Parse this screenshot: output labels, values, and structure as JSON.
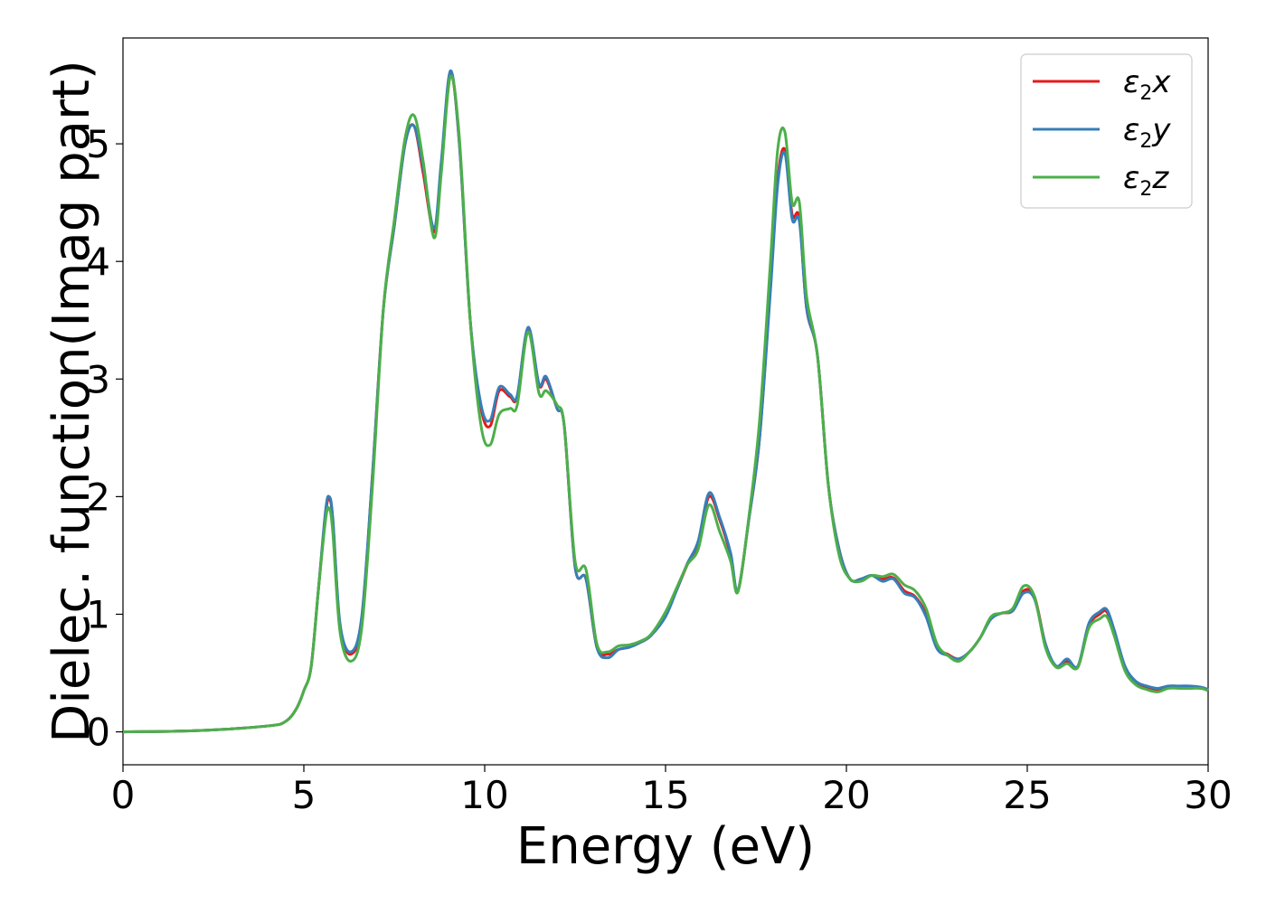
{
  "chart_data": {
    "type": "line",
    "xlabel": "Energy (eV)",
    "ylabel": "Dielec. function(Imag part)",
    "xlim": [
      0,
      30
    ],
    "ylim": [
      -0.28,
      5.9
    ],
    "xticks": [
      0,
      5,
      10,
      15,
      20,
      25,
      30
    ],
    "yticks": [
      0,
      1,
      2,
      3,
      4,
      5
    ],
    "grid": false,
    "legend_position": "top-right",
    "series": [
      {
        "name": "ε2x",
        "legend": {
          "base": "ε",
          "sub": "2",
          "var": "x"
        },
        "color": "#e41a1c",
        "x": [
          0,
          2,
          4,
          4.5,
          4.8,
          5.0,
          5.2,
          5.4,
          5.6,
          5.7,
          5.8,
          6.0,
          6.3,
          6.6,
          6.9,
          7.2,
          7.5,
          7.8,
          8.05,
          8.3,
          8.6,
          8.8,
          9.05,
          9.3,
          9.6,
          9.9,
          10.15,
          10.4,
          10.7,
          10.9,
          11.2,
          11.5,
          11.7,
          12.0,
          12.2,
          12.5,
          12.8,
          13.1,
          13.4,
          13.7,
          14.0,
          14.3,
          14.6,
          15.0,
          15.3,
          15.6,
          15.9,
          16.2,
          16.5,
          16.8,
          17.0,
          17.3,
          17.6,
          17.9,
          18.1,
          18.3,
          18.5,
          18.7,
          18.9,
          19.2,
          19.5,
          19.8,
          20.1,
          20.4,
          20.7,
          21.0,
          21.3,
          21.6,
          21.9,
          22.2,
          22.5,
          22.8,
          23.1,
          23.4,
          23.7,
          24.0,
          24.3,
          24.6,
          24.9,
          25.2,
          25.5,
          25.8,
          26.1,
          26.4,
          26.7,
          27.0,
          27.2,
          27.4,
          27.7,
          28.0,
          28.3,
          28.6,
          28.9,
          29.2,
          29.5,
          29.8,
          30
        ],
        "y": [
          0,
          0.01,
          0.05,
          0.09,
          0.2,
          0.35,
          0.55,
          1.2,
          1.85,
          1.98,
          1.8,
          0.9,
          0.66,
          0.95,
          2.2,
          3.6,
          4.3,
          5.0,
          5.15,
          4.75,
          4.25,
          4.8,
          5.6,
          5.0,
          3.5,
          2.75,
          2.6,
          2.9,
          2.85,
          2.85,
          3.43,
          2.95,
          3.0,
          2.75,
          2.6,
          1.4,
          1.3,
          0.72,
          0.66,
          0.7,
          0.72,
          0.76,
          0.82,
          1.0,
          1.2,
          1.42,
          1.6,
          2.0,
          1.8,
          1.5,
          1.2,
          1.8,
          2.5,
          3.8,
          4.7,
          4.95,
          4.4,
          4.37,
          3.6,
          3.2,
          2.1,
          1.55,
          1.3,
          1.3,
          1.33,
          1.3,
          1.31,
          1.2,
          1.15,
          1.0,
          0.72,
          0.66,
          0.62,
          0.68,
          0.8,
          0.97,
          1.01,
          1.03,
          1.2,
          1.15,
          0.75,
          0.55,
          0.6,
          0.55,
          0.9,
          1.0,
          1.02,
          0.85,
          0.55,
          0.42,
          0.38,
          0.36,
          0.38,
          0.38,
          0.38,
          0.37,
          0.36
        ]
      },
      {
        "name": "ε2y",
        "legend": {
          "base": "ε",
          "sub": "2",
          "var": "y"
        },
        "color": "#377eb8",
        "x": [
          0,
          2,
          4,
          4.5,
          4.8,
          5.0,
          5.2,
          5.4,
          5.6,
          5.7,
          5.8,
          6.0,
          6.3,
          6.6,
          6.9,
          7.2,
          7.5,
          7.8,
          8.05,
          8.3,
          8.6,
          8.8,
          9.05,
          9.3,
          9.6,
          9.9,
          10.15,
          10.4,
          10.7,
          10.9,
          11.2,
          11.5,
          11.7,
          12.0,
          12.2,
          12.5,
          12.8,
          13.1,
          13.4,
          13.7,
          14.0,
          14.3,
          14.6,
          15.0,
          15.3,
          15.6,
          15.9,
          16.2,
          16.5,
          16.8,
          17.0,
          17.3,
          17.6,
          17.9,
          18.1,
          18.3,
          18.5,
          18.7,
          18.9,
          19.2,
          19.5,
          19.8,
          20.1,
          20.4,
          20.7,
          21.0,
          21.3,
          21.6,
          21.9,
          22.2,
          22.5,
          22.8,
          23.1,
          23.4,
          23.7,
          24.0,
          24.3,
          24.6,
          24.9,
          25.2,
          25.5,
          25.8,
          26.1,
          26.4,
          26.7,
          27.0,
          27.2,
          27.4,
          27.7,
          28.0,
          28.3,
          28.6,
          28.9,
          29.2,
          29.5,
          29.8,
          30
        ],
        "y": [
          0,
          0.01,
          0.05,
          0.09,
          0.2,
          0.35,
          0.55,
          1.2,
          1.88,
          2.0,
          1.82,
          0.92,
          0.68,
          0.98,
          2.2,
          3.6,
          4.3,
          5.0,
          5.15,
          4.8,
          4.28,
          4.85,
          5.62,
          5.0,
          3.5,
          2.78,
          2.65,
          2.93,
          2.87,
          2.86,
          3.44,
          2.96,
          3.02,
          2.75,
          2.6,
          1.4,
          1.3,
          0.72,
          0.63,
          0.7,
          0.72,
          0.76,
          0.82,
          0.98,
          1.2,
          1.43,
          1.62,
          2.03,
          1.82,
          1.52,
          1.2,
          1.8,
          2.5,
          3.75,
          4.65,
          4.92,
          4.36,
          4.34,
          3.6,
          3.2,
          2.1,
          1.55,
          1.3,
          1.3,
          1.33,
          1.28,
          1.3,
          1.18,
          1.14,
          0.98,
          0.71,
          0.65,
          0.62,
          0.68,
          0.8,
          0.96,
          1.01,
          1.03,
          1.18,
          1.13,
          0.75,
          0.56,
          0.62,
          0.56,
          0.92,
          1.02,
          1.04,
          0.87,
          0.56,
          0.43,
          0.39,
          0.37,
          0.39,
          0.39,
          0.39,
          0.38,
          0.36
        ]
      },
      {
        "name": "ε2z",
        "legend": {
          "base": "ε",
          "sub": "2",
          "var": "z"
        },
        "color": "#4daf4a",
        "x": [
          0,
          2,
          4,
          4.5,
          4.8,
          5.0,
          5.2,
          5.4,
          5.6,
          5.7,
          5.8,
          6.0,
          6.3,
          6.6,
          6.9,
          7.2,
          7.5,
          7.8,
          8.05,
          8.3,
          8.6,
          8.8,
          9.05,
          9.3,
          9.6,
          9.9,
          10.15,
          10.4,
          10.7,
          10.9,
          11.2,
          11.5,
          11.7,
          12.0,
          12.2,
          12.5,
          12.8,
          13.1,
          13.4,
          13.7,
          14.0,
          14.3,
          14.6,
          15.0,
          15.3,
          15.6,
          15.9,
          16.2,
          16.5,
          16.8,
          17.0,
          17.3,
          17.6,
          17.9,
          18.1,
          18.3,
          18.5,
          18.7,
          18.9,
          19.2,
          19.5,
          19.8,
          20.1,
          20.4,
          20.7,
          21.0,
          21.3,
          21.6,
          21.9,
          22.2,
          22.5,
          22.8,
          23.1,
          23.4,
          23.7,
          24.0,
          24.3,
          24.6,
          24.9,
          25.2,
          25.5,
          25.8,
          26.1,
          26.4,
          26.7,
          27.0,
          27.2,
          27.4,
          27.7,
          28.0,
          28.3,
          28.6,
          28.9,
          29.2,
          29.5,
          29.8,
          30
        ],
        "y": [
          0,
          0.01,
          0.05,
          0.09,
          0.2,
          0.35,
          0.55,
          1.2,
          1.8,
          1.9,
          1.7,
          0.85,
          0.6,
          0.88,
          2.1,
          3.6,
          4.35,
          5.05,
          5.24,
          4.85,
          4.2,
          4.75,
          5.57,
          5.05,
          3.5,
          2.6,
          2.44,
          2.7,
          2.75,
          2.78,
          3.4,
          2.88,
          2.9,
          2.78,
          2.6,
          1.45,
          1.38,
          0.75,
          0.68,
          0.73,
          0.74,
          0.77,
          0.83,
          1.02,
          1.22,
          1.42,
          1.55,
          1.93,
          1.7,
          1.45,
          1.19,
          1.82,
          2.65,
          4.0,
          4.95,
          5.1,
          4.5,
          4.5,
          3.7,
          3.2,
          2.1,
          1.5,
          1.3,
          1.28,
          1.33,
          1.32,
          1.34,
          1.25,
          1.2,
          1.05,
          0.75,
          0.65,
          0.6,
          0.68,
          0.8,
          0.98,
          1.01,
          1.05,
          1.24,
          1.15,
          0.72,
          0.55,
          0.58,
          0.55,
          0.88,
          0.96,
          0.98,
          0.82,
          0.52,
          0.4,
          0.36,
          0.34,
          0.37,
          0.37,
          0.37,
          0.37,
          0.35
        ]
      }
    ]
  }
}
